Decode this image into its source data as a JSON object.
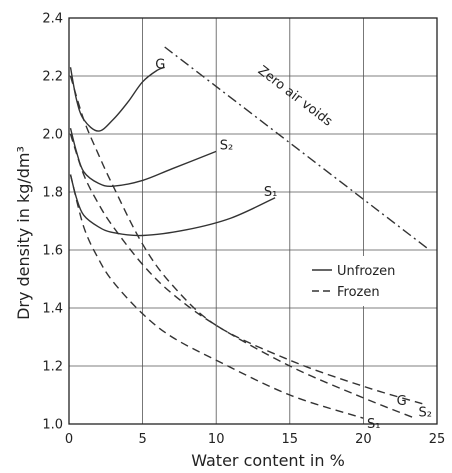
{
  "chart_data": {
    "type": "line",
    "xlabel": "Water content in %",
    "ylabel": "Dry density in kg/dm³",
    "xlim": [
      0,
      25
    ],
    "ylim": [
      1.0,
      2.4
    ],
    "x_ticks": [
      0,
      5,
      10,
      15,
      20,
      25
    ],
    "x_tick_labels": [
      "0",
      "5",
      "10",
      "15",
      "20",
      "25"
    ],
    "y_ticks": [
      1.0,
      1.2,
      1.4,
      1.6,
      1.8,
      2.0,
      2.2,
      2.4
    ],
    "y_tick_labels": [
      "1.0",
      "1.2",
      "1.4",
      "1.6",
      "1.8",
      "2.0",
      "2.2",
      "2.4"
    ],
    "grid": true,
    "legend": {
      "placement": "middle-right",
      "entries": [
        {
          "label": "Unfrozen",
          "style": "solid"
        },
        {
          "label": "Frozen",
          "style": "dashed"
        }
      ]
    },
    "series": [
      {
        "name": "G",
        "condition": "Unfrozen",
        "style": "solid",
        "x": [
          0.1,
          0.5,
          1.0,
          2.0,
          3.0,
          4.0,
          5.0,
          6.0,
          6.5
        ],
        "y": [
          2.23,
          2.12,
          2.05,
          2.01,
          2.05,
          2.11,
          2.18,
          2.22,
          2.23
        ]
      },
      {
        "name": "S₂",
        "condition": "Unfrozen",
        "style": "solid",
        "x": [
          0.1,
          0.5,
          1.0,
          2.0,
          3.0,
          5.0,
          7.0,
          10.0
        ],
        "y": [
          2.02,
          1.94,
          1.87,
          1.83,
          1.82,
          1.84,
          1.88,
          1.94
        ]
      },
      {
        "name": "S₁",
        "condition": "Unfrozen",
        "style": "solid",
        "x": [
          0.1,
          0.5,
          1.0,
          2.0,
          3.0,
          5.0,
          8.0,
          11.0,
          14.0
        ],
        "y": [
          1.86,
          1.78,
          1.72,
          1.68,
          1.66,
          1.65,
          1.67,
          1.71,
          1.78
        ]
      },
      {
        "name": "G",
        "condition": "Frozen",
        "style": "dashed",
        "x": [
          0.1,
          1.0,
          2.0,
          3.0,
          5.0,
          7.0,
          10.0,
          15.0,
          20.0,
          24.0
        ],
        "y": [
          2.2,
          2.05,
          1.93,
          1.82,
          1.62,
          1.48,
          1.34,
          1.22,
          1.13,
          1.07
        ]
      },
      {
        "name": "S₂",
        "condition": "Frozen",
        "style": "dashed",
        "x": [
          0.1,
          1.0,
          2.0,
          3.0,
          5.0,
          7.0,
          10.0,
          15.0,
          20.0,
          23.5
        ],
        "y": [
          2.0,
          1.86,
          1.76,
          1.68,
          1.55,
          1.45,
          1.34,
          1.2,
          1.09,
          1.02
        ]
      },
      {
        "name": "S₁",
        "condition": "Frozen",
        "style": "dashed",
        "x": [
          0.1,
          1.0,
          2.0,
          3.0,
          5.0,
          7.0,
          10.0,
          15.0,
          20.0
        ],
        "y": [
          1.86,
          1.68,
          1.57,
          1.49,
          1.38,
          1.3,
          1.22,
          1.1,
          1.02
        ]
      },
      {
        "name": "Zero air voids",
        "style": "dash-dot",
        "x": [
          6.5,
          24.5
        ],
        "y": [
          2.3,
          1.6
        ]
      }
    ],
    "curve_labels": [
      {
        "text": "G",
        "x": 6.2,
        "y": 2.24
      },
      {
        "text": "S₂",
        "x": 10.7,
        "y": 1.96
      },
      {
        "text": "S₁",
        "x": 13.7,
        "y": 1.8
      },
      {
        "text": "G",
        "x": 22.6,
        "y": 1.08
      },
      {
        "text": "S₂",
        "x": 24.2,
        "y": 1.04
      },
      {
        "text": "S₁",
        "x": 20.7,
        "y": 1.0
      }
    ],
    "annotation": {
      "text": "Zero air voids",
      "x": 15.2,
      "y": 2.12
    }
  }
}
